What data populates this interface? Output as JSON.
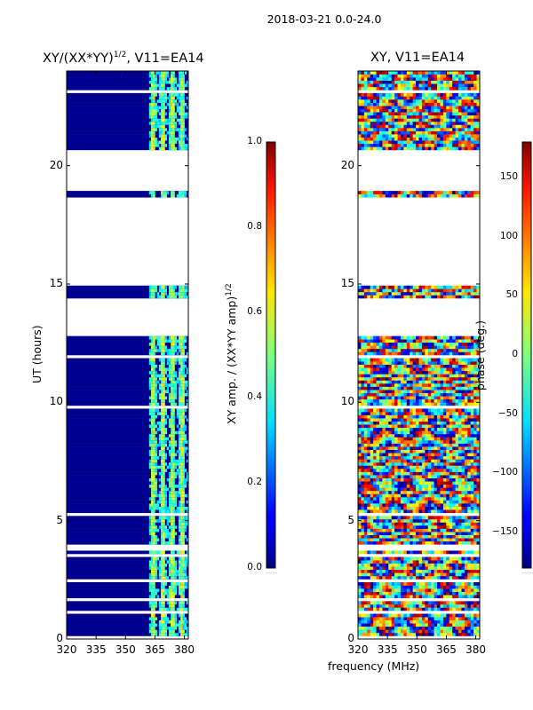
{
  "chart_data": [
    {
      "type": "heatmap",
      "title": "XY/(XX*YY)^1/2, V11=EA14",
      "title_main": "XY/(XX*YY)",
      "title_exp": "1/2",
      "title_suffix": ", V11=EA14",
      "xlabel": "",
      "ylabel": "UT (hours)",
      "xlim": [
        320,
        382
      ],
      "ylim": [
        0,
        24
      ],
      "xticks": [
        320,
        335,
        350,
        365,
        380
      ],
      "yticks": [
        0,
        5,
        10,
        15,
        20
      ],
      "colorbar": {
        "label": "XY amp. / (XX*YY amp)^1/2",
        "label_main": "XY amp. / (XX*YY amp)",
        "label_exp": "1/2",
        "range": [
          0.0,
          1.0
        ],
        "ticks": [
          "0.0",
          "0.2",
          "0.4",
          "0.6",
          "0.8",
          "1.0"
        ],
        "colormap": "jet"
      },
      "data_gaps_ut_hours": [
        [
          12.8,
          14.4
        ],
        [
          15.0,
          18.7
        ],
        [
          18.9,
          20.7
        ]
      ],
      "high_value_band_mhz": [
        362,
        381
      ]
    },
    {
      "type": "heatmap",
      "title": "XY, V11=EA14",
      "xlabel": "frequency (MHz)",
      "ylabel": "",
      "xlim": [
        320,
        382
      ],
      "ylim": [
        0,
        24
      ],
      "xticks": [
        320,
        335,
        350,
        365,
        380
      ],
      "yticks": [
        0,
        5,
        10,
        15,
        20
      ],
      "colorbar": {
        "label": "phase (deg.)",
        "range": [
          -180,
          180
        ],
        "ticks": [
          "−150",
          "−100",
          "−50",
          "0",
          "50",
          "100",
          "150"
        ],
        "colormap": "jet"
      },
      "data_gaps_ut_hours": [
        [
          12.8,
          14.4
        ],
        [
          15.0,
          18.7
        ],
        [
          18.9,
          20.7
        ]
      ]
    }
  ],
  "figure": {
    "suptitle": "2018-03-21 0.0-24.0",
    "cb_offset_text_1": ".......",
    "cb_offset_text_2": "......."
  }
}
